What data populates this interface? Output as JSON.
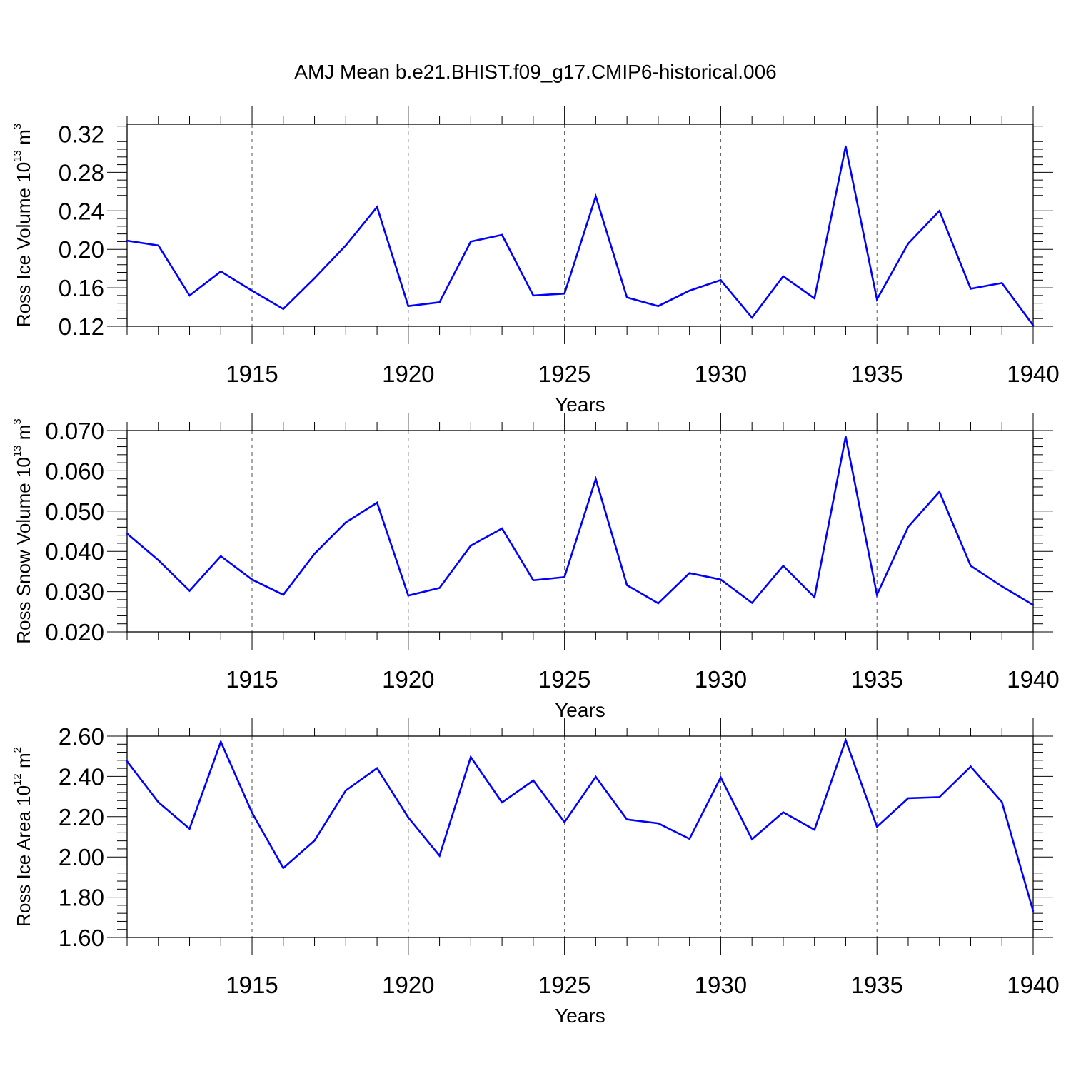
{
  "figure": {
    "title": "AMJ Mean b.e21.BHIST.f09_g17.CMIP6-historical.006"
  },
  "colors": {
    "line": "#0000ff",
    "axis": "#000000",
    "grid": "#555555"
  },
  "chart_data": [
    {
      "type": "line",
      "name": "ross-ice-volume",
      "title": "AMJ Mean b.e21.BHIST.f09_g17.CMIP6-historical.006",
      "xlabel": "Years",
      "ylabel": {
        "prefix": "Ross Ice Volume 10",
        "exp": "13",
        "unit": " m",
        "unit_exp": "3"
      },
      "xlim": [
        1911,
        1940
      ],
      "ylim": [
        0.12,
        0.33
      ],
      "xticks": [
        1915,
        1920,
        1925,
        1930,
        1935,
        1940
      ],
      "yticks": [
        0.12,
        0.16,
        0.2,
        0.24,
        0.28,
        0.32
      ],
      "yticklabels": [
        "0.12",
        "0.16",
        "0.20",
        "0.24",
        "0.28",
        "0.32"
      ],
      "x": [
        1911,
        1912,
        1913,
        1914,
        1915,
        1916,
        1917,
        1918,
        1919,
        1920,
        1921,
        1922,
        1923,
        1924,
        1925,
        1926,
        1927,
        1928,
        1929,
        1930,
        1931,
        1932,
        1933,
        1934,
        1935,
        1936,
        1937,
        1938,
        1939,
        1940
      ],
      "values": [
        0.209,
        0.204,
        0.152,
        0.177,
        0.157,
        0.138,
        0.17,
        0.204,
        0.244,
        0.141,
        0.145,
        0.208,
        0.215,
        0.152,
        0.154,
        0.255,
        0.15,
        0.141,
        0.157,
        0.168,
        0.129,
        0.172,
        0.149,
        0.307,
        0.148,
        0.206,
        0.24,
        0.159,
        0.165,
        0.121
      ]
    },
    {
      "type": "line",
      "name": "ross-snow-volume",
      "title": "",
      "xlabel": "Years",
      "ylabel": {
        "prefix": "Ross Snow Volume 10",
        "exp": "13",
        "unit": " m",
        "unit_exp": "3"
      },
      "xlim": [
        1911,
        1940
      ],
      "ylim": [
        0.02,
        0.07
      ],
      "xticks": [
        1915,
        1920,
        1925,
        1930,
        1935,
        1940
      ],
      "yticks": [
        0.02,
        0.03,
        0.04,
        0.05,
        0.06,
        0.07
      ],
      "yticklabels": [
        "0.020",
        "0.030",
        "0.040",
        "0.050",
        "0.060",
        "0.070"
      ],
      "x": [
        1911,
        1912,
        1913,
        1914,
        1915,
        1916,
        1917,
        1918,
        1919,
        1920,
        1921,
        1922,
        1923,
        1924,
        1925,
        1926,
        1927,
        1928,
        1929,
        1930,
        1931,
        1932,
        1933,
        1934,
        1935,
        1936,
        1937,
        1938,
        1939,
        1940
      ],
      "values": [
        0.0444,
        0.0378,
        0.0302,
        0.0388,
        0.033,
        0.0292,
        0.0394,
        0.0472,
        0.0521,
        0.029,
        0.0309,
        0.0414,
        0.0457,
        0.0328,
        0.0336,
        0.058,
        0.0316,
        0.0271,
        0.0346,
        0.033,
        0.0272,
        0.0364,
        0.0286,
        0.0685,
        0.0292,
        0.0461,
        0.0548,
        0.0364,
        0.0313,
        0.0267
      ]
    },
    {
      "type": "line",
      "name": "ross-ice-area",
      "title": "",
      "xlabel": "Years",
      "ylabel": {
        "prefix": "Ross Ice Area 10",
        "exp": "12",
        "unit": " m",
        "unit_exp": "2"
      },
      "xlim": [
        1911,
        1940
      ],
      "ylim": [
        1.6,
        2.6
      ],
      "xticks": [
        1915,
        1920,
        1925,
        1930,
        1935,
        1940
      ],
      "yticks": [
        1.6,
        1.8,
        2.0,
        2.2,
        2.4,
        2.6
      ],
      "yticklabels": [
        "1.60",
        "1.80",
        "2.00",
        "2.20",
        "2.40",
        "2.60"
      ],
      "x": [
        1911,
        1912,
        1913,
        1914,
        1915,
        1916,
        1917,
        1918,
        1919,
        1920,
        1921,
        1922,
        1923,
        1924,
        1925,
        1926,
        1927,
        1928,
        1929,
        1930,
        1931,
        1932,
        1933,
        1934,
        1935,
        1936,
        1937,
        1938,
        1939,
        1940
      ],
      "values": [
        2.475,
        2.272,
        2.14,
        2.572,
        2.22,
        1.945,
        2.082,
        2.33,
        2.441,
        2.196,
        2.006,
        2.496,
        2.271,
        2.38,
        2.173,
        2.398,
        2.186,
        2.167,
        2.09,
        2.395,
        2.088,
        2.222,
        2.135,
        2.58,
        2.15,
        2.292,
        2.297,
        2.449,
        2.273,
        1.731
      ]
    }
  ]
}
